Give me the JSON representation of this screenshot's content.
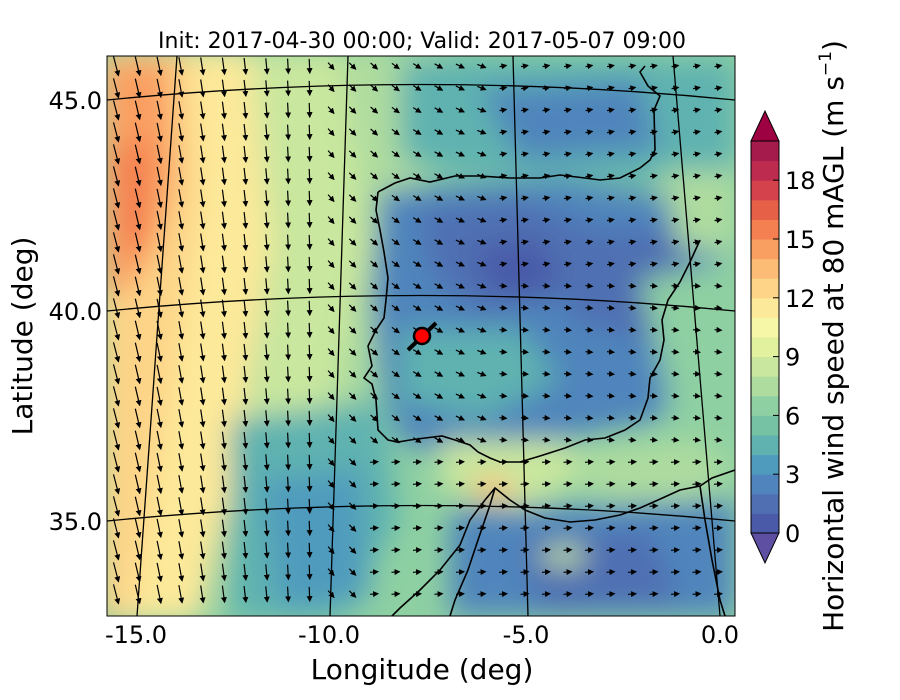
{
  "chart_data": {
    "type": "map-contour-vector",
    "title": "Init: 2017-04-30 00:00; Valid: 2017-05-07 09:00",
    "xlabel": "Longitude (deg)",
    "ylabel": "Latitude (deg)",
    "xlim": [
      -15.9,
      0.3
    ],
    "ylim": [
      32.6,
      46.0
    ],
    "x_ticks": [
      -15.0,
      -10.0,
      -5.0,
      0.0
    ],
    "x_tick_labels": [
      "-15.0",
      "-10.0",
      "-5.0",
      "0.0"
    ],
    "y_ticks": [
      35.0,
      40.0,
      45.0
    ],
    "y_tick_labels": [
      "35.0",
      "40.0",
      "45.0"
    ],
    "graticule": true,
    "site_marker": {
      "lon": -7.7,
      "lat": 39.3,
      "color": "#ff0000"
    },
    "colorbar": {
      "label": "Horizontal wind speed at 80 mAGL (m s⁻¹)",
      "label_main": "Horizontal wind speed at 80 mAGL (m s",
      "label_sup": "−1",
      "label_close": ")",
      "levels": [
        0,
        1,
        2,
        3,
        4,
        5,
        6,
        7,
        8,
        9,
        10,
        11,
        12,
        13,
        14,
        15,
        16,
        17,
        18,
        19,
        20
      ],
      "ticks": [
        0,
        3,
        6,
        9,
        12,
        15,
        18
      ],
      "tick_labels": [
        "0",
        "3",
        "6",
        "9",
        "12",
        "15",
        "18"
      ],
      "extend": "both",
      "colors": [
        "#4a5aa8",
        "#4f6fb2",
        "#4f85bc",
        "#4f9bbd",
        "#5fb2b0",
        "#75c3a4",
        "#8fd0a3",
        "#aedc9f",
        "#c9e79e",
        "#e2f19d",
        "#f6f8a8",
        "#fde99a",
        "#fdd488",
        "#fcbc76",
        "#fa9f62",
        "#f47f50",
        "#e65f47",
        "#d4434c",
        "#bd2c4f",
        "#a51b4b"
      ],
      "under_color": "#5e4fa2",
      "over_color": "#9e0142"
    }
  }
}
